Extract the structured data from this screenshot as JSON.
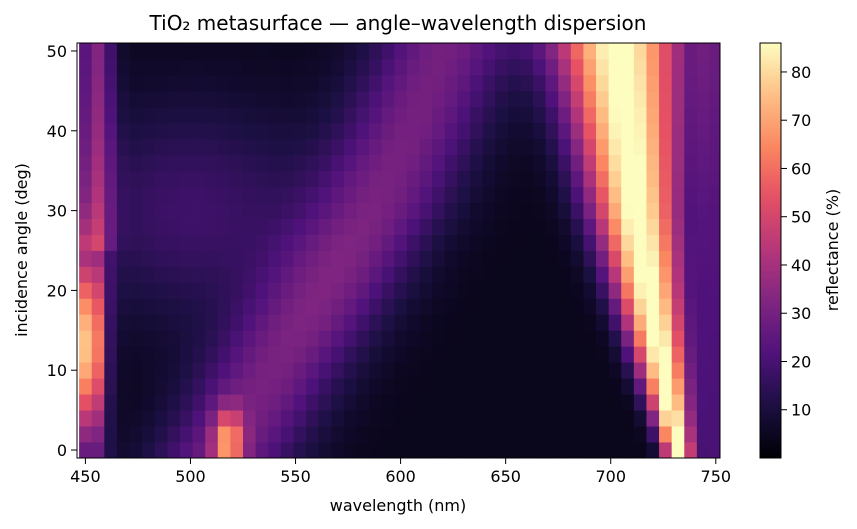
{
  "chart_data": {
    "type": "heatmap",
    "title": "TiO₂ metasurface — angle–wavelength dispersion",
    "xlabel": "wavelength (nm)",
    "ylabel": "incidence angle (deg)",
    "colorbar_label": "reflectance (%)",
    "colormap": "magma",
    "xlim": [
      446,
      752
    ],
    "ylim": [
      -1,
      51
    ],
    "x_ticks": [
      "450",
      "500",
      "550",
      "600",
      "650",
      "700",
      "750"
    ],
    "x_tick_values": [
      450,
      500,
      550,
      600,
      650,
      700,
      750
    ],
    "y_ticks": [
      "0",
      "10",
      "20",
      "30",
      "40",
      "50"
    ],
    "y_tick_values": [
      0,
      10,
      20,
      30,
      40,
      50
    ],
    "colorbar_range": [
      0,
      86
    ],
    "colorbar_ticks": [
      "10",
      "20",
      "30",
      "40",
      "50",
      "60",
      "70",
      "80"
    ],
    "colorbar_tick_values": [
      10,
      20,
      30,
      40,
      50,
      60,
      70,
      80
    ],
    "wavelength_grid_nm": {
      "start": 450,
      "stop": 750,
      "step": 6
    },
    "angle_grid_deg": {
      "start": 0,
      "stop": 50,
      "step": 2
    },
    "features": [
      {
        "name": "guided-mode resonance, upper branch",
        "points": [
          [
            732,
            0
          ],
          [
            725,
            10
          ],
          [
            718,
            20
          ],
          [
            712,
            30
          ],
          [
            708,
            40
          ],
          [
            704,
            50
          ]
        ],
        "peak": 85
      },
      {
        "name": "guided-mode resonance, lower branch",
        "points": [
          [
            518,
            0
          ],
          [
            540,
            10
          ],
          [
            565,
            20
          ],
          [
            588,
            30
          ],
          [
            605,
            40
          ],
          [
            620,
            50
          ]
        ],
        "peak": 32
      },
      {
        "name": "Mie resonance (short wavelength)",
        "points": [
          [
            452,
            13
          ]
        ],
        "peak": 70
      },
      {
        "name": "Low-angle dip",
        "points": [
          [
            518,
            1
          ]
        ],
        "peak": 62
      }
    ]
  }
}
